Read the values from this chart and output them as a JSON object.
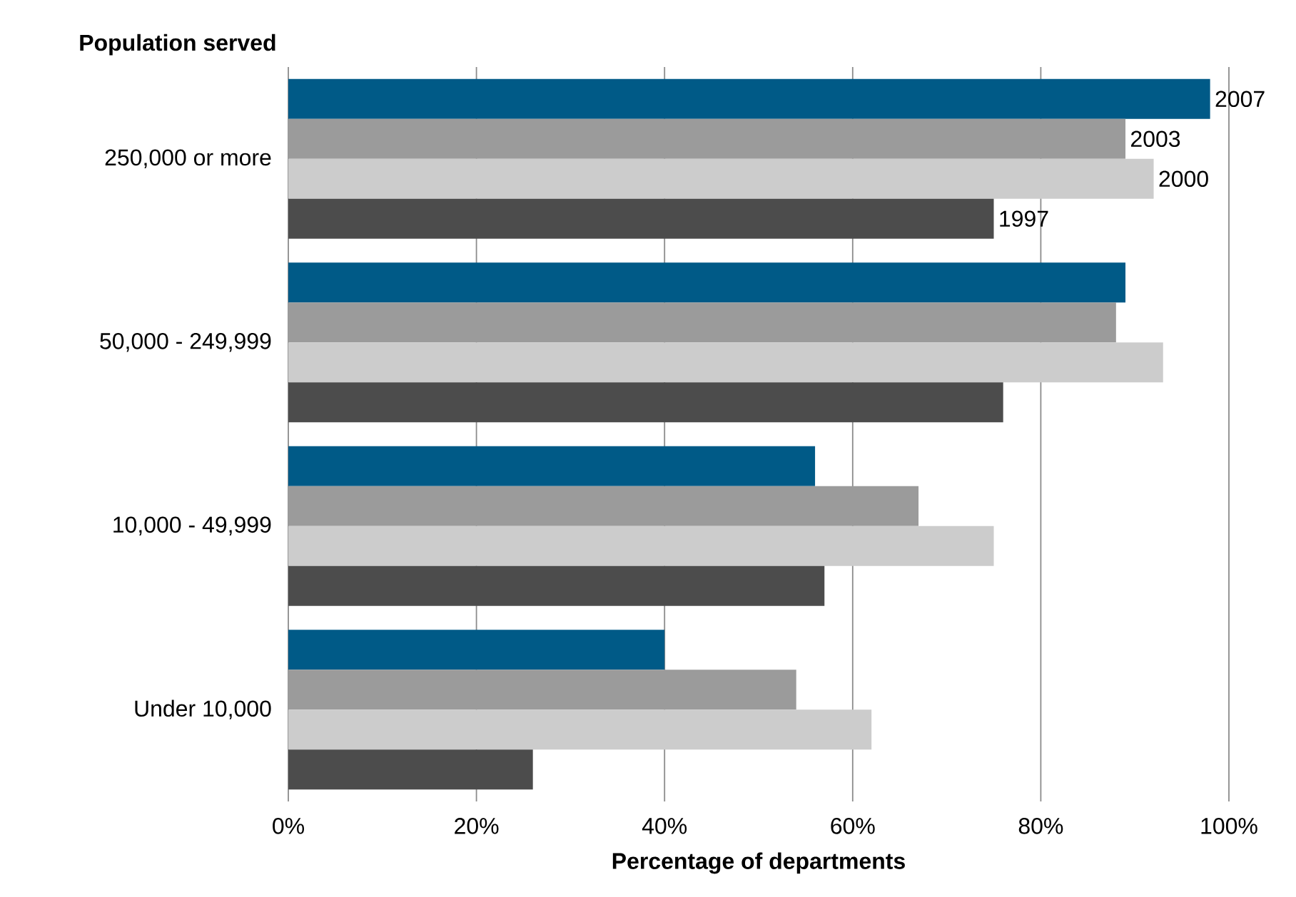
{
  "chart_data": {
    "type": "bar",
    "orientation": "horizontal",
    "ylabel": "Population served",
    "xlabel": "Percentage of departments",
    "categories": [
      "250,000 or more",
      "50,000 - 249,999",
      "10,000 - 49,999",
      "Under 10,000"
    ],
    "series": [
      {
        "name": "2007",
        "color": "#005a87",
        "values": [
          98,
          89,
          56,
          40
        ]
      },
      {
        "name": "2003",
        "color": "#9b9b9b",
        "values": [
          89,
          88,
          67,
          54
        ]
      },
      {
        "name": "2000",
        "color": "#cccccc",
        "values": [
          92,
          93,
          75,
          62
        ]
      },
      {
        "name": "1997",
        "color": "#4c4c4c",
        "values": [
          75,
          76,
          57,
          26
        ]
      }
    ],
    "xlim": [
      0,
      100
    ],
    "xticks": [
      {
        "value": 0,
        "label": "0%"
      },
      {
        "value": 20,
        "label": "20%"
      },
      {
        "value": 40,
        "label": "40%"
      },
      {
        "value": 60,
        "label": "60%"
      },
      {
        "value": 80,
        "label": "80%"
      },
      {
        "value": 100,
        "label": "100%"
      }
    ],
    "grid": "x",
    "legend": false
  }
}
